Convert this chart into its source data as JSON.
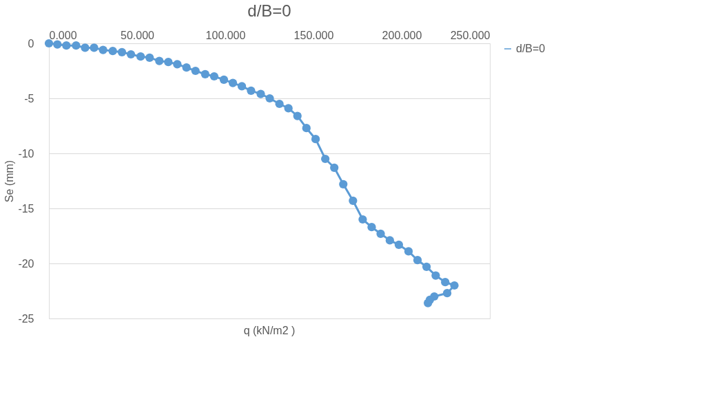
{
  "chart_data": {
    "type": "line",
    "title": "d/B=0",
    "xlabel": "q (kN/m2 )",
    "ylabel": "Se (mm)",
    "xlim": [
      0,
      250
    ],
    "xticks": [
      {
        "value": 0,
        "label": "0.000"
      },
      {
        "value": 50,
        "label": "50.000"
      },
      {
        "value": 100,
        "label": "100.000"
      },
      {
        "value": 150,
        "label": "150.000"
      },
      {
        "value": 200,
        "label": "200.000"
      },
      {
        "value": 250,
        "label": "250.000"
      }
    ],
    "ylim": [
      -25,
      0
    ],
    "yticks": [
      0,
      -5,
      -10,
      -15,
      -20,
      -25
    ],
    "grid": "y",
    "legend": "right",
    "marker": "circle",
    "line_style": "solid",
    "series": [
      {
        "name": "d/B=0",
        "color": "#5b9bd5",
        "x": [
          0,
          4.8,
          9.9,
          15.4,
          20.5,
          25.6,
          30.7,
          36.2,
          41.4,
          46.5,
          52.0,
          57.1,
          62.6,
          67.7,
          72.8,
          78.0,
          83.1,
          88.6,
          93.7,
          99.2,
          104.3,
          109.4,
          114.6,
          120.1,
          125.2,
          130.7,
          135.8,
          140.9,
          146.0,
          151.2,
          156.7,
          161.8,
          166.9,
          172.4,
          177.9,
          183.0,
          188.1,
          193.3,
          198.4,
          203.9,
          209.0,
          214.1,
          219.3,
          224.7,
          229.9,
          225.8,
          218.5,
          216.0,
          214.9
        ],
        "values": [
          0,
          -0.1,
          -0.2,
          -0.2,
          -0.4,
          -0.4,
          -0.6,
          -0.7,
          -0.8,
          -1.0,
          -1.2,
          -1.3,
          -1.6,
          -1.7,
          -1.9,
          -2.2,
          -2.5,
          -2.8,
          -3.0,
          -3.3,
          -3.6,
          -3.9,
          -4.3,
          -4.6,
          -5.0,
          -5.5,
          -5.9,
          -6.6,
          -7.7,
          -8.7,
          -10.5,
          -11.3,
          -12.8,
          -14.3,
          -16.0,
          -16.7,
          -17.3,
          -17.9,
          -18.3,
          -18.9,
          -19.7,
          -20.3,
          -21.1,
          -21.7,
          -22.0,
          -22.7,
          -23.0,
          -23.3,
          -23.6
        ]
      }
    ]
  }
}
